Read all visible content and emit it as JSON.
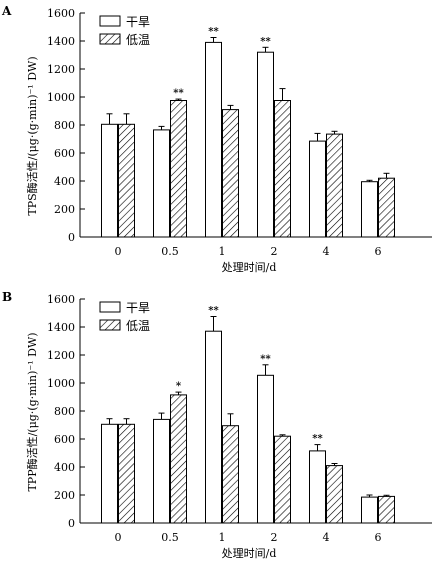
{
  "chart_data": [
    {
      "type": "bar",
      "panel_label": "A",
      "categories": [
        "0",
        "0.5",
        "1",
        "2",
        "4",
        "6"
      ],
      "xlabel": "处理时间/d",
      "ylabel": "TPS酶活性/(μg·(g·min)⁻¹ DW)",
      "ylim": [
        0,
        1600
      ],
      "yticks": [
        "0",
        "200",
        "400",
        "600",
        "800",
        "1000",
        "1200",
        "1400",
        "1600"
      ],
      "legend_position": "top-left",
      "grid": false,
      "series": [
        {
          "name": "干旱",
          "pattern": "open",
          "values": [
            805,
            765,
            1390,
            1320,
            685,
            395
          ],
          "errors": [
            75,
            25,
            35,
            35,
            55,
            10
          ],
          "significance": [
            "",
            "",
            "**",
            "**",
            "",
            ""
          ]
        },
        {
          "name": "低温",
          "pattern": "hatched",
          "values": [
            805,
            975,
            910,
            975,
            735,
            420
          ],
          "errors": [
            75,
            10,
            30,
            85,
            20,
            35
          ],
          "significance": [
            "",
            "**",
            "",
            "",
            "",
            ""
          ]
        }
      ]
    },
    {
      "type": "bar",
      "panel_label": "B",
      "categories": [
        "0",
        "0.5",
        "1",
        "2",
        "4",
        "6"
      ],
      "xlabel": "处理时间/d",
      "ylabel": "TPP酶活性/(μg·(g·min)⁻¹ DW)",
      "ylim": [
        0,
        1600
      ],
      "yticks": [
        "0",
        "200",
        "400",
        "600",
        "800",
        "1000",
        "1200",
        "1400",
        "1600"
      ],
      "legend_position": "top-left",
      "grid": false,
      "series": [
        {
          "name": "干旱",
          "pattern": "open",
          "values": [
            705,
            740,
            1370,
            1055,
            515,
            185
          ],
          "errors": [
            40,
            45,
            105,
            75,
            45,
            15
          ],
          "significance": [
            "",
            "",
            "**",
            "**",
            "**",
            ""
          ]
        },
        {
          "name": "低温",
          "pattern": "hatched",
          "values": [
            705,
            915,
            695,
            620,
            410,
            190
          ],
          "errors": [
            40,
            20,
            85,
            10,
            15,
            8
          ],
          "significance": [
            "",
            "*",
            "",
            "",
            "",
            ""
          ]
        }
      ]
    }
  ]
}
